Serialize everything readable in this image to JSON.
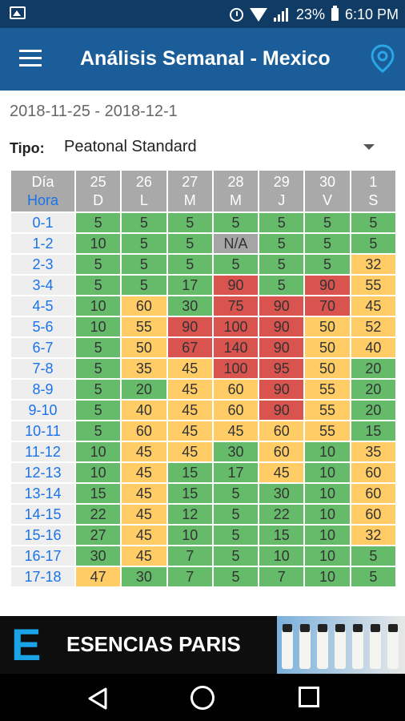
{
  "status": {
    "battery": "23%",
    "time": "6:10 PM"
  },
  "app": {
    "title": "Análisis Semanal - Mexico"
  },
  "filters": {
    "date_range": "2018-11-25 - 2018-12-1",
    "tipo_label": "Tipo:",
    "tipo_value": "Peatonal Standard"
  },
  "table": {
    "corner": [
      "Día",
      "Hora"
    ],
    "days": [
      {
        "num": "25",
        "letter": "D"
      },
      {
        "num": "26",
        "letter": "L"
      },
      {
        "num": "27",
        "letter": "M"
      },
      {
        "num": "28",
        "letter": "M"
      },
      {
        "num": "29",
        "letter": "J"
      },
      {
        "num": "30",
        "letter": "V"
      },
      {
        "num": "1",
        "letter": "S"
      }
    ],
    "rows": [
      {
        "hour": "0-1",
        "cells": [
          "5",
          "5",
          "5",
          "5",
          "5",
          "5",
          "5"
        ],
        "colors": [
          "g",
          "g",
          "g",
          "g",
          "g",
          "g",
          "g"
        ]
      },
      {
        "hour": "1-2",
        "cells": [
          "10",
          "5",
          "5",
          "N/A",
          "5",
          "5",
          "5"
        ],
        "colors": [
          "g",
          "g",
          "g",
          "n",
          "g",
          "g",
          "g"
        ]
      },
      {
        "hour": "2-3",
        "cells": [
          "5",
          "5",
          "5",
          "5",
          "5",
          "5",
          "32"
        ],
        "colors": [
          "g",
          "g",
          "g",
          "g",
          "g",
          "g",
          "y"
        ]
      },
      {
        "hour": "3-4",
        "cells": [
          "5",
          "5",
          "17",
          "90",
          "5",
          "90",
          "55"
        ],
        "colors": [
          "g",
          "g",
          "g",
          "r",
          "g",
          "r",
          "y"
        ]
      },
      {
        "hour": "4-5",
        "cells": [
          "10",
          "60",
          "30",
          "75",
          "90",
          "70",
          "45"
        ],
        "colors": [
          "g",
          "y",
          "g",
          "r",
          "r",
          "r",
          "y"
        ]
      },
      {
        "hour": "5-6",
        "cells": [
          "10",
          "55",
          "90",
          "100",
          "90",
          "50",
          "52"
        ],
        "colors": [
          "g",
          "y",
          "r",
          "r",
          "r",
          "y",
          "y"
        ]
      },
      {
        "hour": "6-7",
        "cells": [
          "5",
          "50",
          "67",
          "140",
          "90",
          "50",
          "40"
        ],
        "colors": [
          "g",
          "y",
          "r",
          "r",
          "r",
          "y",
          "y"
        ]
      },
      {
        "hour": "7-8",
        "cells": [
          "5",
          "35",
          "45",
          "100",
          "95",
          "50",
          "20"
        ],
        "colors": [
          "g",
          "y",
          "y",
          "r",
          "r",
          "y",
          "g"
        ]
      },
      {
        "hour": "8-9",
        "cells": [
          "5",
          "20",
          "45",
          "60",
          "90",
          "55",
          "20"
        ],
        "colors": [
          "g",
          "g",
          "y",
          "y",
          "r",
          "y",
          "g"
        ]
      },
      {
        "hour": "9-10",
        "cells": [
          "5",
          "40",
          "45",
          "60",
          "90",
          "55",
          "20"
        ],
        "colors": [
          "g",
          "y",
          "y",
          "y",
          "r",
          "y",
          "g"
        ]
      },
      {
        "hour": "10-11",
        "cells": [
          "5",
          "60",
          "45",
          "45",
          "60",
          "55",
          "15"
        ],
        "colors": [
          "g",
          "y",
          "y",
          "y",
          "y",
          "y",
          "g"
        ]
      },
      {
        "hour": "11-12",
        "cells": [
          "10",
          "45",
          "45",
          "30",
          "60",
          "10",
          "35"
        ],
        "colors": [
          "g",
          "y",
          "y",
          "g",
          "y",
          "g",
          "y"
        ]
      },
      {
        "hour": "12-13",
        "cells": [
          "10",
          "45",
          "15",
          "17",
          "45",
          "10",
          "60"
        ],
        "colors": [
          "g",
          "y",
          "g",
          "g",
          "y",
          "g",
          "y"
        ]
      },
      {
        "hour": "13-14",
        "cells": [
          "15",
          "45",
          "15",
          "5",
          "30",
          "10",
          "60"
        ],
        "colors": [
          "g",
          "y",
          "g",
          "g",
          "g",
          "g",
          "y"
        ]
      },
      {
        "hour": "14-15",
        "cells": [
          "22",
          "45",
          "12",
          "5",
          "22",
          "10",
          "60"
        ],
        "colors": [
          "g",
          "y",
          "g",
          "g",
          "g",
          "g",
          "y"
        ]
      },
      {
        "hour": "15-16",
        "cells": [
          "27",
          "45",
          "10",
          "5",
          "15",
          "10",
          "32"
        ],
        "colors": [
          "g",
          "y",
          "g",
          "g",
          "g",
          "g",
          "y"
        ]
      },
      {
        "hour": "16-17",
        "cells": [
          "30",
          "45",
          "7",
          "5",
          "10",
          "10",
          "5"
        ],
        "colors": [
          "g",
          "y",
          "g",
          "g",
          "g",
          "g",
          "g"
        ]
      },
      {
        "hour": "17-18",
        "cells": [
          "47",
          "30",
          "7",
          "5",
          "7",
          "10",
          "5"
        ],
        "colors": [
          "y",
          "g",
          "g",
          "g",
          "g",
          "g",
          "g"
        ]
      }
    ]
  },
  "ad": {
    "logo_letter": "E",
    "text": "ESENCIAS PARIS"
  },
  "colors": {
    "green": "#66bb6a",
    "yellow": "#ffcc66",
    "red": "#d9534f",
    "na": "#a5a5a5",
    "appbar": "#1a5d98",
    "statusbar": "#0f3b64"
  }
}
